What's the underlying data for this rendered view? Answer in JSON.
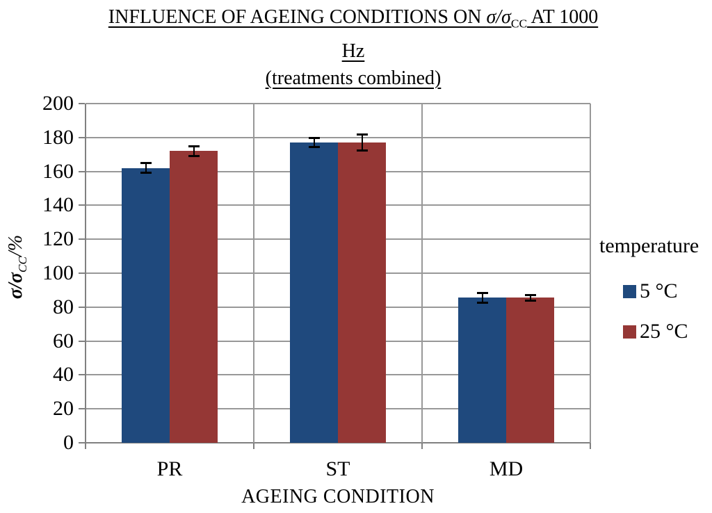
{
  "title": {
    "line1_pre": "INFLUENCE OF AGEING CONDITIONS ON ",
    "ratio_main": "σ/σ",
    "ratio_sub": "CC",
    "line1_post": " AT 1000",
    "line2": "Hz",
    "line3": "(treatments combined)"
  },
  "ylabel_parts": {
    "main": "σ/σ",
    "sub": "CC",
    "post": "/%"
  },
  "chart_data": {
    "type": "bar",
    "title": "INFLUENCE OF AGEING CONDITIONS ON σ/σCC AT 1000 Hz",
    "subtitle": "(treatments combined)",
    "categories": [
      "PR",
      "ST",
      "MD"
    ],
    "series": [
      {
        "name": "5 °C",
        "color": "#1F497D",
        "values": [
          162,
          177,
          85.5
        ],
        "errors": [
          3,
          3,
          3
        ]
      },
      {
        "name": "25 °C",
        "color": "#953735",
        "values": [
          172,
          177,
          85.5
        ],
        "errors": [
          3,
          5,
          2
        ]
      }
    ],
    "xlabel": "AGEING CONDITION",
    "ylabel": "σ/σCC/%",
    "ylim": [
      0,
      200
    ],
    "ytick_step": 20,
    "grid": true,
    "error_bars": true,
    "legend_title": "temperature",
    "legend_position": "right"
  },
  "colors": {
    "grid": "#989898",
    "axis": "#808080",
    "error_bar": "#000000",
    "series_blue": "#1F497D",
    "series_red": "#953735",
    "text": "#000000",
    "background": "#FFFFFF"
  }
}
